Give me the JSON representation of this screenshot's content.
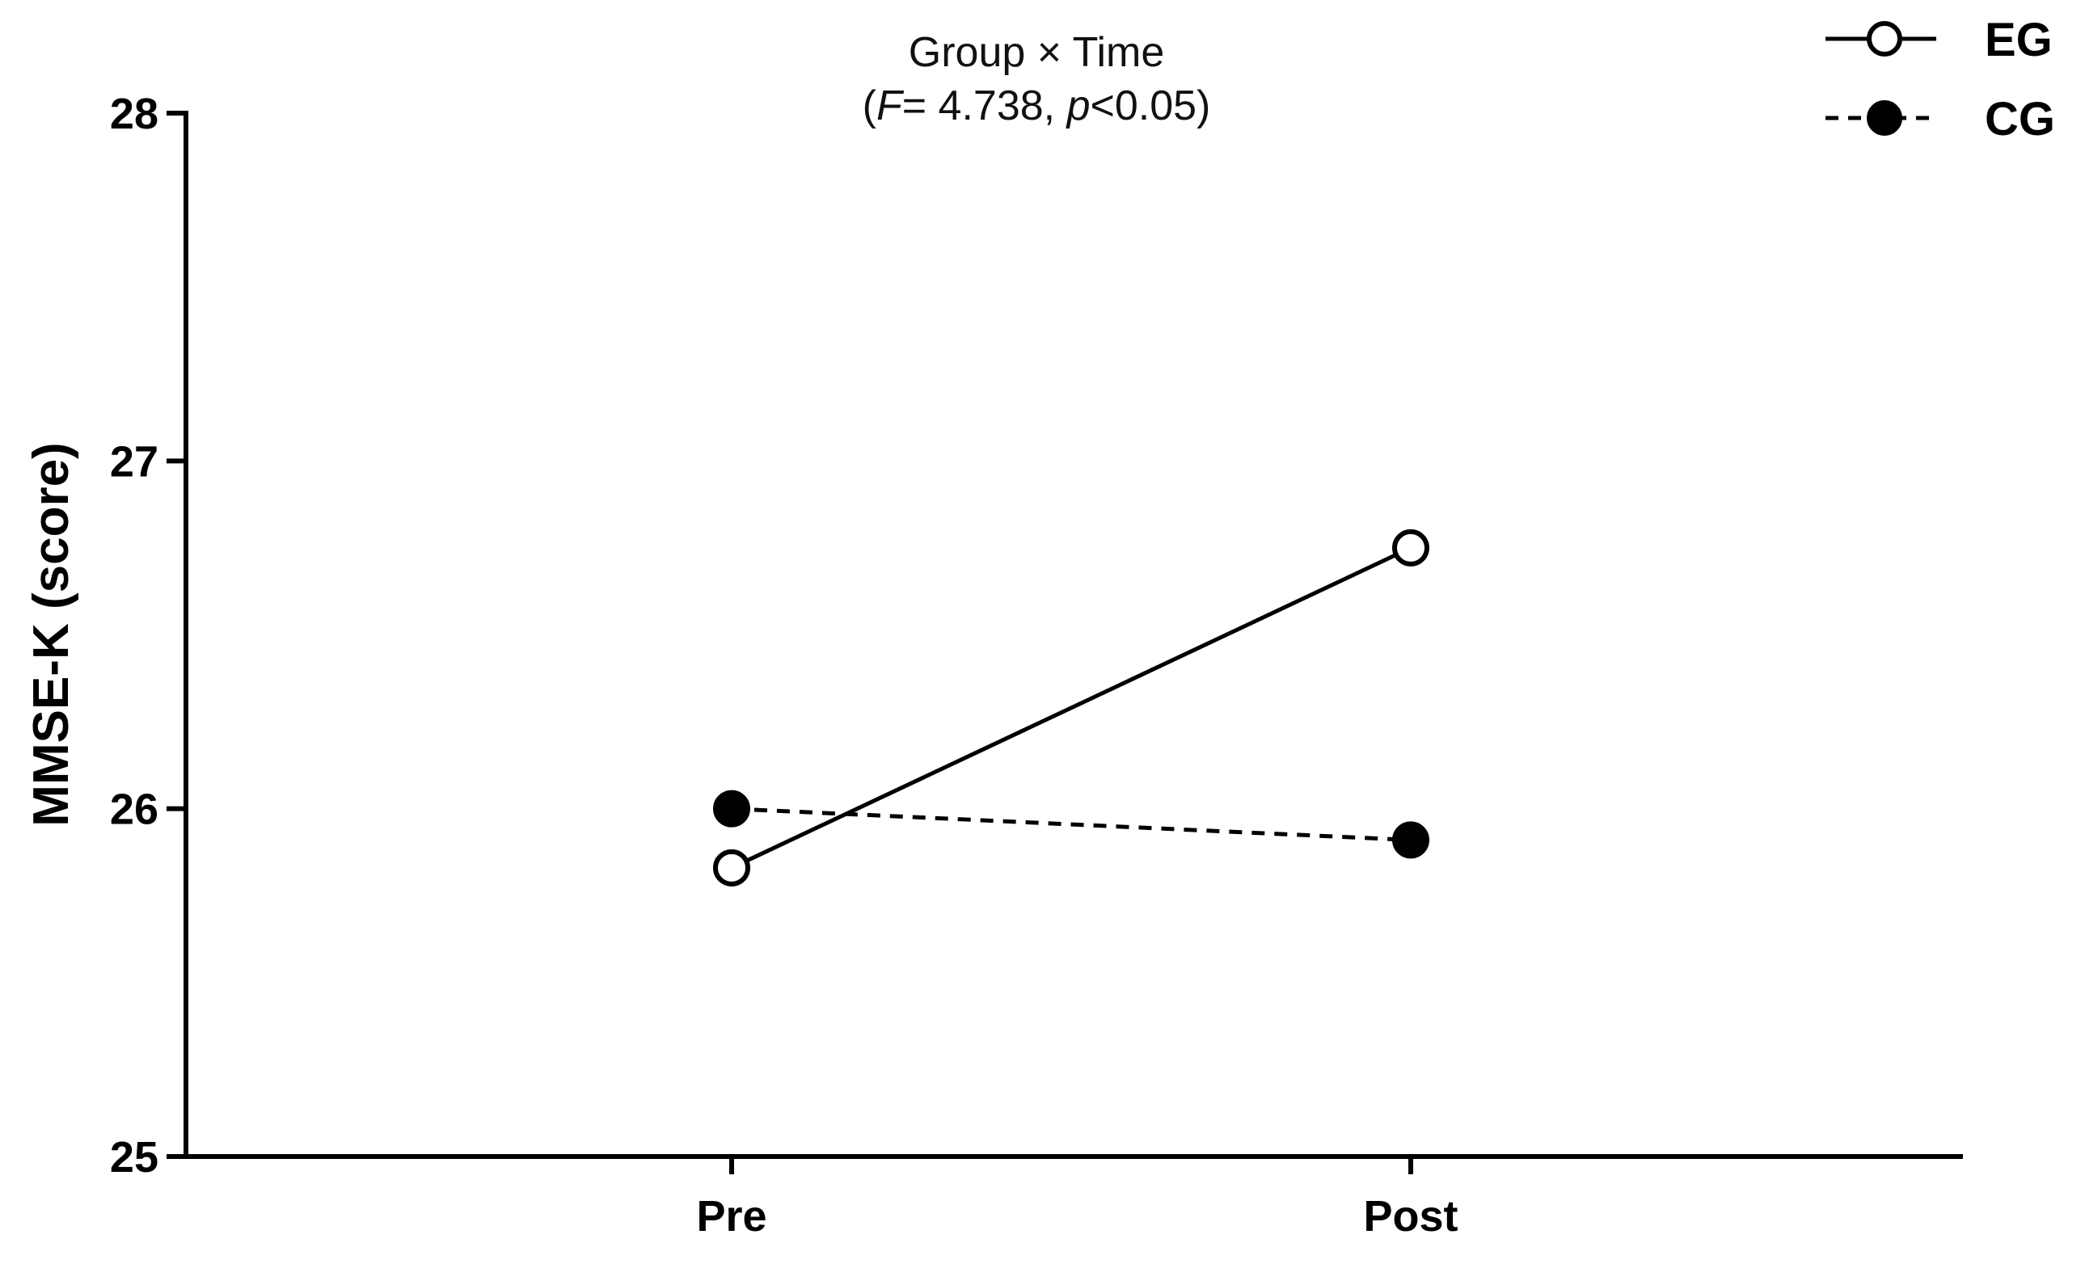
{
  "chart_data": {
    "type": "line",
    "title": "Group × Time",
    "subtitle": {
      "open": "(",
      "f_symbol": "F",
      "f_value": "= 4.738, ",
      "p_symbol": "p",
      "p_value": "<0.05)"
    },
    "categories": [
      "Pre",
      "Post"
    ],
    "xlabel": "",
    "ylabel": "MMSE-K (score)",
    "ylim": [
      25,
      28
    ],
    "yticks": [
      "25",
      "26",
      "27",
      "28"
    ],
    "grid": false,
    "legend_position": "top-right",
    "series": [
      {
        "name": "EG",
        "values": [
          25.83,
          26.75
        ],
        "line_style": "solid",
        "marker": "open-circle",
        "color": "#000000"
      },
      {
        "name": "CG",
        "values": [
          26.0,
          25.91
        ],
        "line_style": "dashed",
        "marker": "filled-circle",
        "color": "#000000"
      }
    ]
  }
}
